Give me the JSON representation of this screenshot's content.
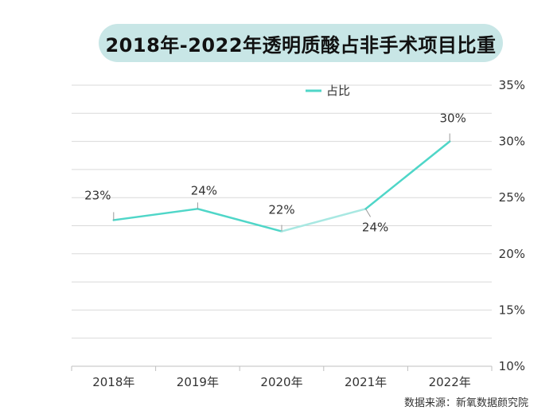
{
  "header": {
    "title": "2018年-2022年透明质酸占非手术项目比重"
  },
  "footer": {
    "source": "数据来源：新氧数据颜究院"
  },
  "colors": {
    "line": "#4fd6c8",
    "line_faded": "#a8e8e2",
    "grid": "#d9d9d9",
    "title_bg": "#c8e6e6"
  },
  "chart_data": {
    "type": "line",
    "title": "2018年-2022年透明质酸占非手术项目比重",
    "categories": [
      "2018年",
      "2019年",
      "2020年",
      "2021年",
      "2022年"
    ],
    "series": [
      {
        "name": "占比",
        "values": [
          23,
          24,
          22,
          24,
          30
        ],
        "labels": [
          "23%",
          "24%",
          "22%",
          "24%",
          "30%"
        ]
      }
    ],
    "y_axis": {
      "min": 10,
      "max": 35,
      "ticks": [
        10,
        15,
        20,
        25,
        30,
        35
      ],
      "tick_labels": [
        "10%",
        "15%",
        "20%",
        "25%",
        "30%",
        "35%"
      ],
      "position": "right"
    },
    "grid": true,
    "legend": "top"
  }
}
